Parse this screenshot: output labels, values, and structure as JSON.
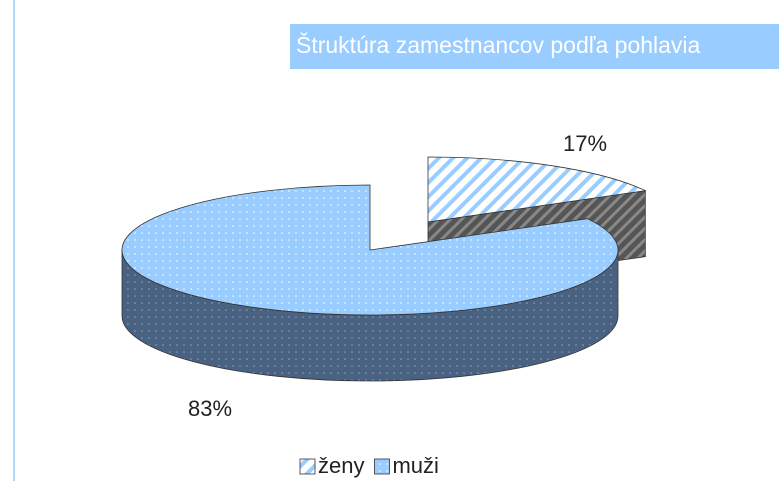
{
  "chart_data": {
    "type": "pie3d",
    "title": "Štruktúra zamestnancov podľa pohlavia",
    "categories": [
      "ženy",
      "muži"
    ],
    "values": [
      17,
      83
    ],
    "value_labels": [
      "17%",
      "83%"
    ],
    "colors": [
      "#99ccff",
      "#99ccff"
    ],
    "legend": "bottom"
  }
}
